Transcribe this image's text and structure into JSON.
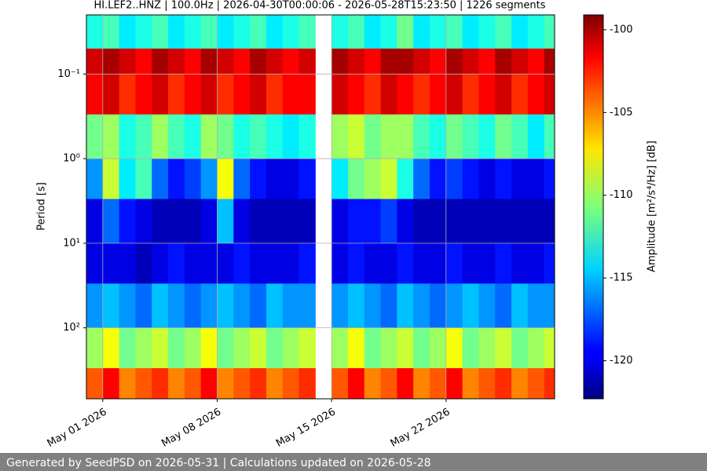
{
  "chart_data": {
    "type": "heatmap",
    "title": "HI.LEF2..HNZ | 100.0Hz | 2026-04-30T00:00:06 - 2026-05-28T15:23:50 | 1226 segments",
    "ylabel": "Period [s]",
    "colorbar_label": "Amplitude [m²/s⁴/Hz] [dB]",
    "colormap": "jet",
    "footer": "Generated by SeedPSD on 2026-05-31 | Calculations updated on 2026-05-28",
    "xlim": [
      "2026-04-30T00:00:06",
      "2026-05-28T15:23:50"
    ],
    "xticks": [
      {
        "value": "2026-05-01",
        "label": "May 01 2026"
      },
      {
        "value": "2026-05-08",
        "label": "May 08 2026"
      },
      {
        "value": "2026-05-15",
        "label": "May 15 2026"
      },
      {
        "value": "2026-05-22",
        "label": "May 22 2026"
      }
    ],
    "ylim": [
      0.02,
      690
    ],
    "y_log": true,
    "y_inverted": true,
    "yticks": [
      {
        "value": 0.1,
        "label": "10⁻¹"
      },
      {
        "value": 1,
        "label": "10⁰"
      },
      {
        "value": 10,
        "label": "10¹"
      },
      {
        "value": 100,
        "label": "10²"
      }
    ],
    "grid": true,
    "zlim": [
      -122.3,
      -99.1
    ],
    "zticks": [
      -100,
      -105,
      -110,
      -115,
      -120
    ],
    "x": [
      "2026-04-30",
      "2026-05-01",
      "2026-05-02",
      "2026-05-03",
      "2026-05-04",
      "2026-05-05",
      "2026-05-06",
      "2026-05-07",
      "2026-05-08",
      "2026-05-09",
      "2026-05-10",
      "2026-05-11",
      "2026-05-12",
      "2026-05-13",
      "2026-05-14",
      "2026-05-15",
      "2026-05-16",
      "2026-05-17",
      "2026-05-18",
      "2026-05-19",
      "2026-05-20",
      "2026-05-21",
      "2026-05-22",
      "2026-05-23",
      "2026-05-24",
      "2026-05-25",
      "2026-05-26",
      "2026-05-27",
      "2026-05-28"
    ],
    "y_edges": [
      0.02,
      0.05,
      0.1,
      0.3,
      1,
      3,
      10,
      30,
      100,
      300,
      690
    ],
    "z": [
      [
        -113,
        -112,
        -114,
        -113,
        -112,
        -114,
        -113,
        -112,
        -114,
        -113,
        -112,
        -114,
        -113,
        -112,
        null,
        -113,
        -112,
        -114,
        -113,
        -111,
        -114,
        -113,
        -112,
        -114,
        -113,
        -112,
        -114,
        -113,
        -112
      ],
      [
        -101,
        -100,
        -101,
        -102,
        -100,
        -101,
        -102,
        -100,
        -101,
        -102,
        -100,
        -101,
        -102,
        -101,
        null,
        -100,
        -101,
        -102,
        -100,
        -100,
        -101,
        -102,
        -100,
        -101,
        -102,
        -100,
        -101,
        -102,
        -100
      ],
      [
        -102,
        -101,
        -103,
        -102,
        -101,
        -103,
        -102,
        -101,
        -103,
        -102,
        -101,
        -103,
        -102,
        -102,
        null,
        -101,
        -102,
        -103,
        -101,
        -102,
        -103,
        -102,
        -101,
        -103,
        -102,
        -101,
        -103,
        -102,
        -101
      ],
      [
        -111,
        -110,
        -113,
        -112,
        -110,
        -112,
        -113,
        -110,
        -111,
        -113,
        -112,
        -113,
        -114,
        -113,
        null,
        -110,
        -109,
        -111,
        -110,
        -110,
        -112,
        -113,
        -111,
        -112,
        -113,
        -111,
        -112,
        -114,
        -112
      ],
      [
        -116,
        -109,
        -114,
        -112,
        -117,
        -119,
        -118,
        -116,
        -108,
        -117,
        -119,
        -120,
        -120,
        -119,
        null,
        -114,
        -111,
        -110,
        -109,
        -113,
        -117,
        -119,
        -118,
        -119,
        -120,
        -119,
        -120,
        -120,
        -119
      ],
      [
        -120,
        -117,
        -119,
        -120,
        -121,
        -121,
        -121,
        -120,
        -115,
        -120,
        -121,
        -121,
        -121,
        -121,
        null,
        -120,
        -119,
        -119,
        -118,
        -120,
        -121,
        -121,
        -121,
        -121,
        -121,
        -121,
        -121,
        -121,
        -121
      ],
      [
        -120,
        -120,
        -120,
        -121,
        -120,
        -119,
        -120,
        -120,
        -120,
        -119,
        -120,
        -120,
        -120,
        -119,
        null,
        -120,
        -119,
        -120,
        -120,
        -119,
        -120,
        -120,
        -119,
        -120,
        -120,
        -119,
        -120,
        -120,
        -119
      ],
      [
        -116,
        -115,
        -116,
        -117,
        -115,
        -116,
        -117,
        -116,
        -115,
        -116,
        -117,
        -115,
        -116,
        -116,
        null,
        -116,
        -115,
        -116,
        -117,
        -115,
        -116,
        -117,
        -116,
        -115,
        -116,
        -117,
        -115,
        -116,
        -116
      ],
      [
        -110,
        -108,
        -111,
        -110,
        -109,
        -111,
        -110,
        -108,
        -111,
        -110,
        -109,
        -111,
        -110,
        -109,
        null,
        -110,
        -108,
        -111,
        -110,
        -109,
        -111,
        -110,
        -108,
        -111,
        -110,
        -109,
        -111,
        -110,
        -109
      ],
      [
        -104,
        -102,
        -105,
        -104,
        -103,
        -105,
        -104,
        -102,
        -105,
        -104,
        -103,
        -105,
        -104,
        -103,
        null,
        -104,
        -102,
        -105,
        -104,
        -102,
        -105,
        -104,
        -102,
        -105,
        -104,
        -103,
        -105,
        -104,
        -103
      ]
    ]
  }
}
